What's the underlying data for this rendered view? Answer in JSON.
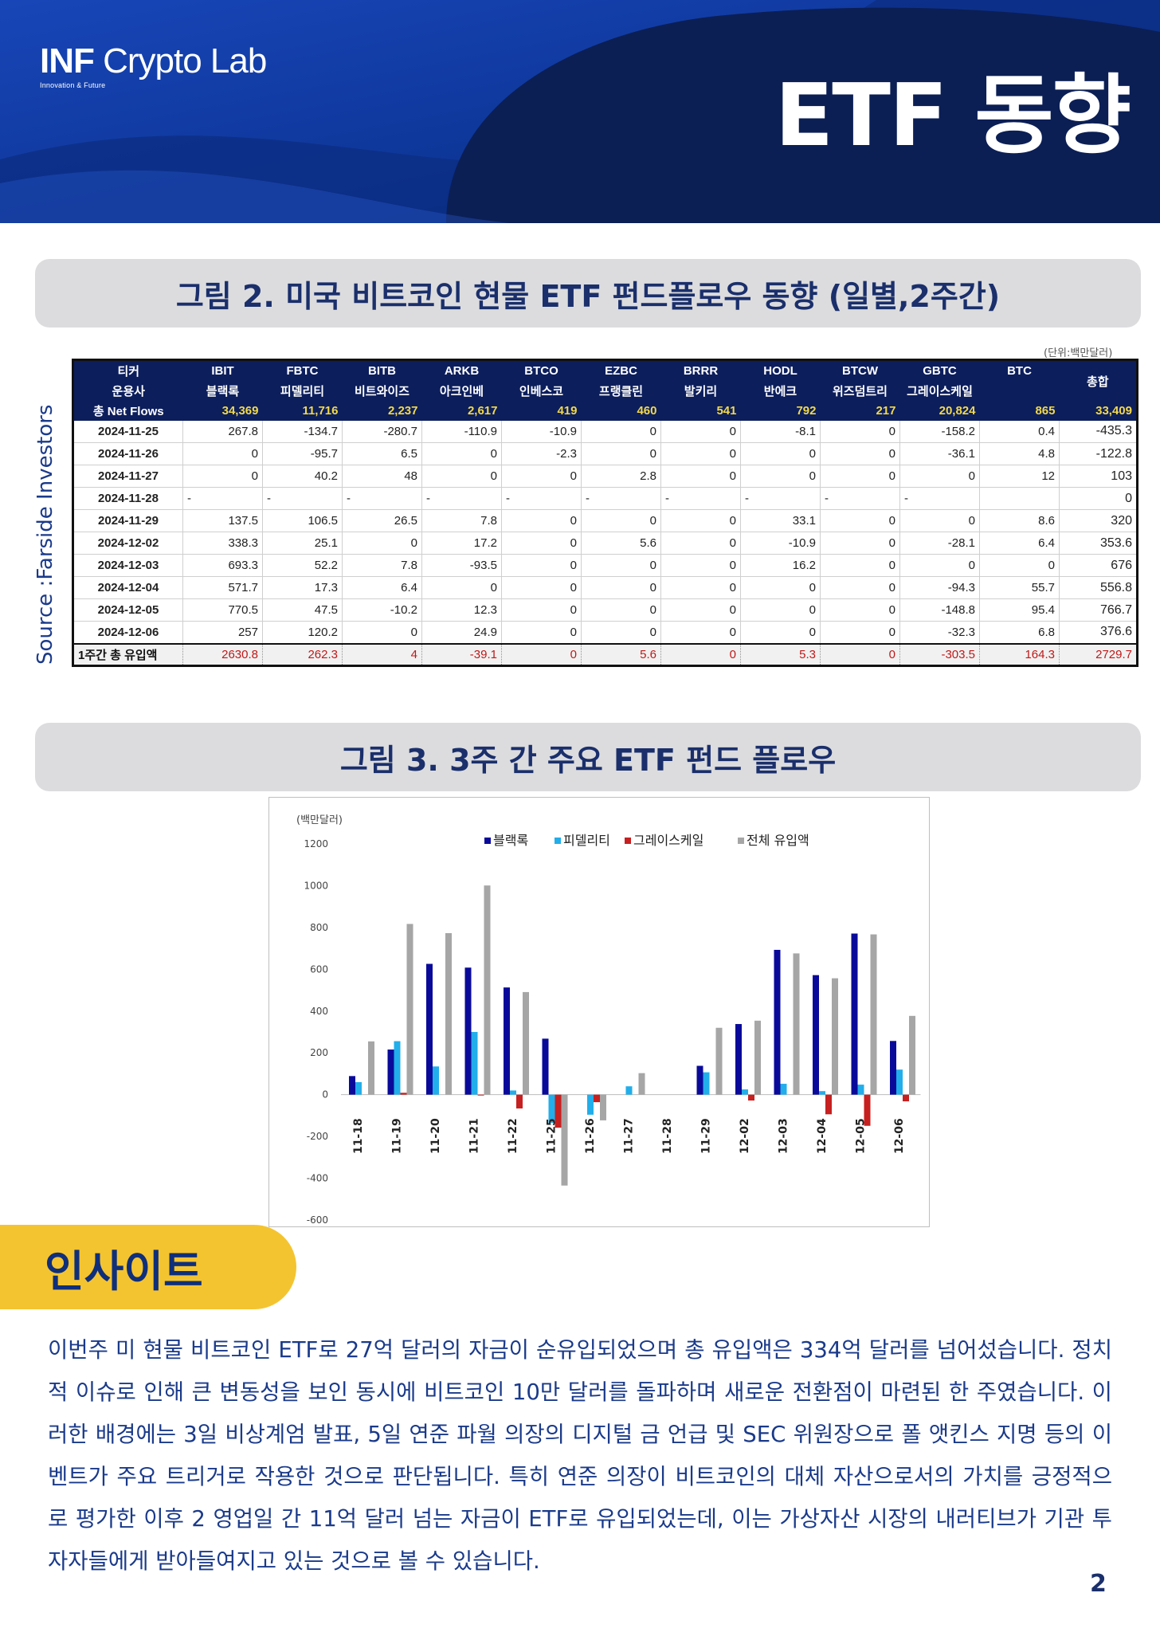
{
  "header": {
    "logo_main_bold": "INF",
    "logo_main_rest": " Crypto Lab",
    "logo_sub": "Innovation & Future",
    "title": "ETF 동향"
  },
  "figure2": {
    "caption": "그림 2.  미국 비트코인 현물 ETF 펀드플로우 동향 (일별,2주간)",
    "source": "Source :Farside Investors",
    "unit": "(단위:백만달러)",
    "header_label_ticker": "티커",
    "header_label_issuer": "운용사",
    "header_label_total": "총합",
    "totals_label": "총 Net Flows",
    "weekly_label": "1주간 총 유입액",
    "tickers": [
      "IBIT",
      "FBTC",
      "BITB",
      "ARKB",
      "BTCO",
      "EZBC",
      "BRRR",
      "HODL",
      "BTCW",
      "GBTC",
      "BTC"
    ],
    "issuers": [
      "블랙록",
      "피델리티",
      "비트와이즈",
      "아크인베",
      "인베스코",
      "프랭클린",
      "발키리",
      "반에크",
      "위즈덤트리",
      "그레이스케일",
      ""
    ],
    "totals": [
      "34,369",
      "11,716",
      "2,237",
      "2,617",
      "419",
      "460",
      "541",
      "792",
      "217",
      "20,824",
      "865",
      "33,409"
    ],
    "rows": [
      {
        "date": "2024-11-25",
        "values": [
          "267.8",
          "-134.7",
          "-280.7",
          "-110.9",
          "-10.9",
          "0",
          "0",
          "-8.1",
          "0",
          "-158.2",
          "0.4",
          "-435.3"
        ]
      },
      {
        "date": "2024-11-26",
        "values": [
          "0",
          "-95.7",
          "6.5",
          "0",
          "-2.3",
          "0",
          "0",
          "0",
          "0",
          "-36.1",
          "4.8",
          "-122.8"
        ]
      },
      {
        "date": "2024-11-27",
        "values": [
          "0",
          "40.2",
          "48",
          "0",
          "0",
          "2.8",
          "0",
          "0",
          "0",
          "0",
          "12",
          "103"
        ]
      },
      {
        "date": "2024-11-28",
        "values": [
          "-",
          "-",
          "-",
          "-",
          "-",
          "-",
          "-",
          "-",
          "-",
          "-",
          "",
          "0"
        ]
      },
      {
        "date": "2024-11-29",
        "values": [
          "137.5",
          "106.5",
          "26.5",
          "7.8",
          "0",
          "0",
          "0",
          "33.1",
          "0",
          "0",
          "8.6",
          "320"
        ]
      },
      {
        "date": "2024-12-02",
        "values": [
          "338.3",
          "25.1",
          "0",
          "17.2",
          "0",
          "5.6",
          "0",
          "-10.9",
          "0",
          "-28.1",
          "6.4",
          "353.6"
        ]
      },
      {
        "date": "2024-12-03",
        "values": [
          "693.3",
          "52.2",
          "7.8",
          "-93.5",
          "0",
          "0",
          "0",
          "16.2",
          "0",
          "0",
          "0",
          "676"
        ]
      },
      {
        "date": "2024-12-04",
        "values": [
          "571.7",
          "17.3",
          "6.4",
          "0",
          "0",
          "0",
          "0",
          "0",
          "0",
          "-94.3",
          "55.7",
          "556.8"
        ]
      },
      {
        "date": "2024-12-05",
        "values": [
          "770.5",
          "47.5",
          "-10.2",
          "12.3",
          "0",
          "0",
          "0",
          "0",
          "0",
          "-148.8",
          "95.4",
          "766.7"
        ]
      },
      {
        "date": "2024-12-06",
        "values": [
          "257",
          "120.2",
          "0",
          "24.9",
          "0",
          "0",
          "0",
          "0",
          "0",
          "-32.3",
          "6.8",
          "376.6"
        ]
      }
    ],
    "weekly": [
      "2630.8",
      "262.3",
      "4",
      "-39.1",
      "0",
      "5.6",
      "0",
      "5.3",
      "0",
      "-303.5",
      "164.3",
      "2729.7"
    ]
  },
  "figure3": {
    "caption": "그림 3.  3주 간 주요 ETF 펀드 플로우"
  },
  "chart_data": {
    "type": "bar",
    "title": "",
    "ylabel": "(백만달러)",
    "xlabel": "",
    "ylim": [
      -600,
      1200
    ],
    "yticks": [
      1200,
      1000,
      800,
      600,
      400,
      200,
      0,
      -200,
      -400,
      -600
    ],
    "legend_position": "top",
    "categories": [
      "11-18",
      "11-19",
      "11-20",
      "11-21",
      "11-22",
      "11-25",
      "11-26",
      "11-27",
      "11-28",
      "11-29",
      "12-02",
      "12-03",
      "12-04",
      "12-05",
      "12-06"
    ],
    "series": [
      {
        "name": "블랙록",
        "color": "#0a0a9a",
        "values": [
          89,
          216,
          626,
          608,
          513,
          268,
          0,
          0,
          0,
          138,
          338,
          693,
          572,
          771,
          257
        ]
      },
      {
        "name": "피델리티",
        "color": "#22aeea",
        "values": [
          60,
          256,
          135,
          300,
          20,
          -135,
          -96,
          40,
          0,
          107,
          25,
          52,
          17,
          48,
          120
        ]
      },
      {
        "name": "그레이스케일",
        "color": "#c62020",
        "values": [
          0,
          9,
          0,
          -4,
          -66,
          -158,
          -36,
          0,
          0,
          0,
          -28,
          0,
          -94,
          -149,
          -32
        ]
      },
      {
        "name": "전체 유입액",
        "color": "#a6a6a6",
        "values": [
          255,
          817,
          773,
          1001,
          491,
          -435,
          -123,
          103,
          0,
          320,
          354,
          676,
          557,
          767,
          377
        ]
      }
    ]
  },
  "insight": {
    "tag": "인사이트",
    "body": "이번주 미 현물 비트코인 ETF로 27억 달러의 자금이 순유입되었으며 총 유입액은 334억 달러를 넘어섰습니다. 정치적 이슈로 인해 큰 변동성을 보인 동시에 비트코인 10만 달러를 돌파하며 새로운 전환점이 마련된 한 주였습니다. 이러한 배경에는 3일 비상계엄 발표, 5일 연준 파월 의장의 디지털 금 언급 및 SEC 위원장으로 폴 앳킨스 지명 등의 이벤트가 주요 트리거로 작용한 것으로 판단됩니다. 특히 연준 의장이 비트코인의 대체 자산으로서의 가치를 긍정적으로 평가한 이후 2 영업일 간 11억 달러 넘는 자금이 ETF로 유입되었는데, 이는 가상자산 시장의 내러티브가 기관 투자자들에게 받아들여지고 있는 것으로 볼 수 있습니다."
  },
  "page_number": "2"
}
